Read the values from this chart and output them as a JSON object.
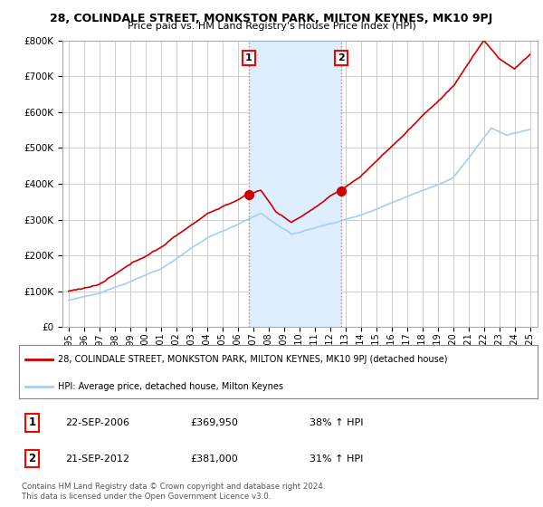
{
  "title": "28, COLINDALE STREET, MONKSTON PARK, MILTON KEYNES, MK10 9PJ",
  "subtitle": "Price paid vs. HM Land Registry's House Price Index (HPI)",
  "background_color": "#ffffff",
  "plot_bg_color": "#ffffff",
  "grid_color": "#cccccc",
  "ylim": [
    0,
    800000
  ],
  "yticks": [
    0,
    100000,
    200000,
    300000,
    400000,
    500000,
    600000,
    700000,
    800000
  ],
  "ytick_labels": [
    "£0",
    "£100K",
    "£200K",
    "£300K",
    "£400K",
    "£500K",
    "£600K",
    "£700K",
    "£800K"
  ],
  "xtick_years": [
    1995,
    1996,
    1997,
    1998,
    1999,
    2000,
    2001,
    2002,
    2003,
    2004,
    2005,
    2006,
    2007,
    2008,
    2009,
    2010,
    2011,
    2012,
    2013,
    2014,
    2015,
    2016,
    2017,
    2018,
    2019,
    2020,
    2021,
    2022,
    2023,
    2024,
    2025
  ],
  "red_line_color": "#cc0000",
  "blue_line_color": "#aaccee",
  "shade_color": "#ddeeff",
  "purchase1_x": 2006.72,
  "purchase1_y": 369950,
  "purchase2_x": 2012.72,
  "purchase2_y": 381000,
  "purchase1_label": "1",
  "purchase2_label": "2",
  "legend_entry1": "28, COLINDALE STREET, MONKSTON PARK, MILTON KEYNES, MK10 9PJ (detached house)",
  "legend_entry2": "HPI: Average price, detached house, Milton Keynes",
  "table_row1_num": "1",
  "table_row1_date": "22-SEP-2006",
  "table_row1_price": "£369,950",
  "table_row1_hpi": "38% ↑ HPI",
  "table_row2_num": "2",
  "table_row2_date": "21-SEP-2012",
  "table_row2_price": "£381,000",
  "table_row2_hpi": "31% ↑ HPI",
  "copyright": "Contains HM Land Registry data © Crown copyright and database right 2024.\nThis data is licensed under the Open Government Licence v3.0."
}
